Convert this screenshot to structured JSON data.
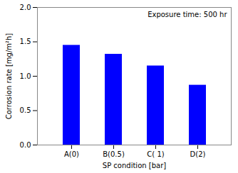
{
  "chart_data": {
    "type": "bar",
    "categories": [
      "A(0)",
      "B(0.5)",
      "C( 1)",
      "D(2)"
    ],
    "values": [
      1.45,
      1.32,
      1.15,
      0.87
    ],
    "color": "#0000FF",
    "xlabel": "SP condition [bar]",
    "ylabel": "Corrosion rate [mg/m²h]",
    "ylim": [
      0.0,
      2.0
    ],
    "yticks": [
      {
        "value": 0.0,
        "label": "0.0"
      },
      {
        "value": 0.5,
        "label": "0.5"
      },
      {
        "value": 1.0,
        "label": "1.0"
      },
      {
        "value": 1.5,
        "label": "1.5"
      },
      {
        "value": 2.0,
        "label": "2.0"
      }
    ],
    "annotation": "Exposure time: 500 hr",
    "grid": false
  }
}
